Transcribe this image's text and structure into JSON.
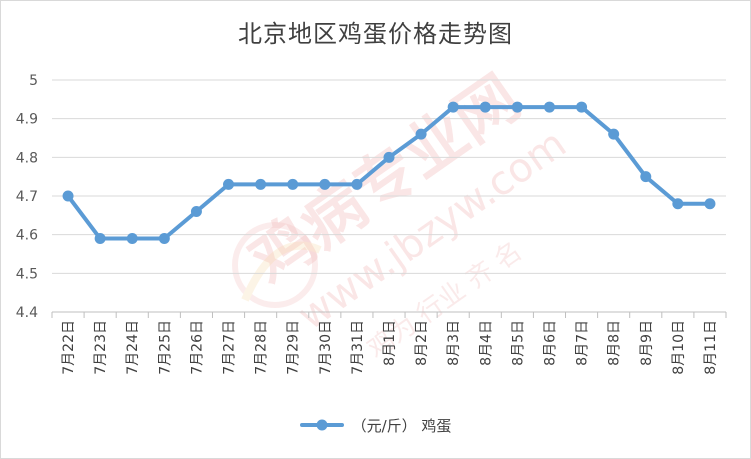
{
  "chart_data": {
    "type": "line",
    "title": "北京地区鸡蛋价格走势图",
    "categories": [
      "7月22日",
      "7月23日",
      "7月24日",
      "7月25日",
      "7月26日",
      "7月27日",
      "7月28日",
      "7月29日",
      "7月30日",
      "7月31日",
      "8月1日",
      "8月2日",
      "8月3日",
      "8月4日",
      "8月5日",
      "8月6日",
      "8月7日",
      "8月8日",
      "8月9日",
      "8月10日",
      "8月11日"
    ],
    "series": [
      {
        "name": "（元/斤） 鸡蛋",
        "color": "#5b9bd5",
        "values": [
          4.7,
          4.59,
          4.59,
          4.59,
          4.66,
          4.73,
          4.73,
          4.73,
          4.73,
          4.73,
          4.8,
          4.86,
          4.93,
          4.93,
          4.93,
          4.93,
          4.93,
          4.86,
          4.75,
          4.68,
          4.68
        ]
      }
    ],
    "ylim": [
      4.4,
      5.0
    ],
    "yticks": [
      "4.4",
      "4.5",
      "4.6",
      "4.7",
      "4.8",
      "4.9",
      "5"
    ],
    "grid": true,
    "legend_position": "bottom",
    "xlabel": "",
    "ylabel": ""
  },
  "watermark": {
    "text_main": "鸡病专业网",
    "text_url": "www.jbzyw.com",
    "text_sub": "鸡为 行业 齐 名",
    "color": "#f2b8b8"
  }
}
